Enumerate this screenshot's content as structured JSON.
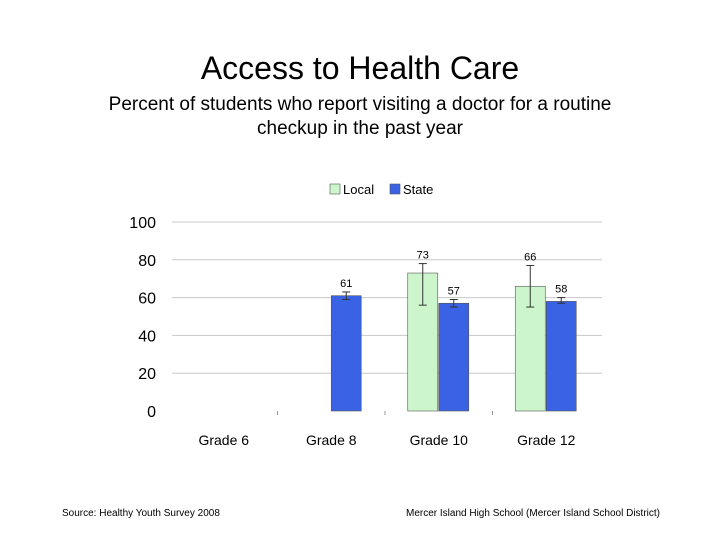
{
  "slide": {
    "title": "Access to Health Care",
    "subtitle": "Percent of students who report visiting a doctor for a routine checkup in the past year",
    "footer_left": "Source: Healthy Youth Survey 2008",
    "footer_right": "Mercer Island High School (Mercer Island School District)"
  },
  "chart_data": {
    "type": "bar",
    "title": "",
    "xlabel": "",
    "ylabel": "",
    "categories": [
      "Grade 6",
      "Grade 8",
      "Grade 10",
      "Grade 12"
    ],
    "ylim": [
      0,
      100
    ],
    "yticks": [
      0,
      20,
      40,
      60,
      80,
      100
    ],
    "grid": true,
    "legend_position": "top",
    "series": [
      {
        "name": "Local",
        "color": "#ccf5cc",
        "values": [
          null,
          null,
          73,
          66
        ],
        "labels": [
          "",
          "",
          "73",
          "66"
        ],
        "error": [
          null,
          null,
          [
            56,
            78
          ],
          [
            55,
            77
          ]
        ]
      },
      {
        "name": "State",
        "color": "#3a62e4",
        "values": [
          null,
          61,
          57,
          58
        ],
        "labels": [
          "",
          "61",
          "57",
          "58"
        ],
        "error": [
          null,
          [
            59,
            63
          ],
          [
            55,
            59
          ],
          [
            57,
            60
          ]
        ]
      }
    ]
  }
}
